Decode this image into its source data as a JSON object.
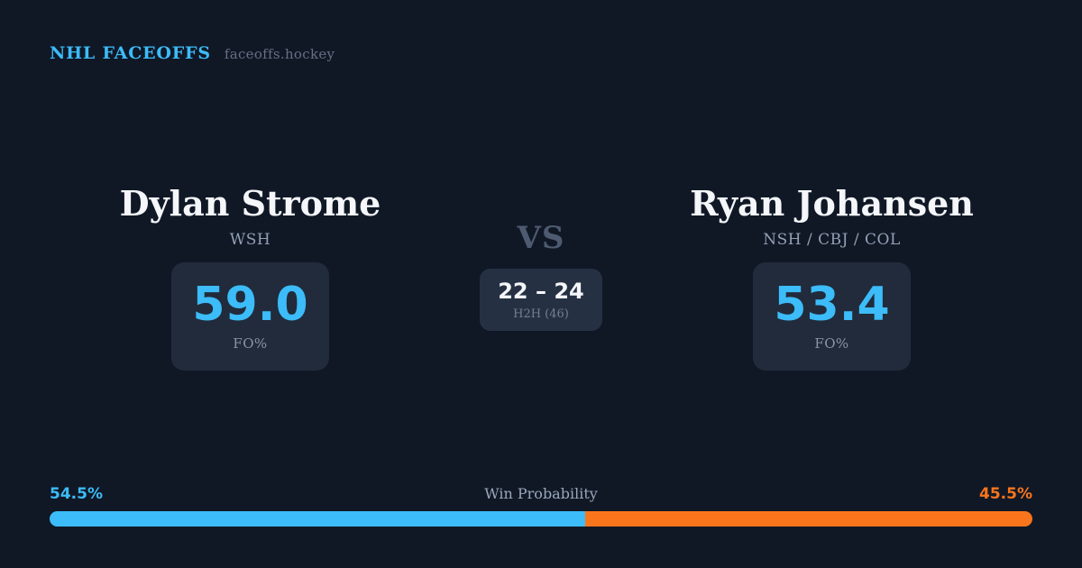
{
  "header": {
    "brand": "NHL FACEOFFS",
    "site": "faceoffs.hockey"
  },
  "players": {
    "left": {
      "name": "Dylan Strome",
      "teams": "WSH",
      "fo_pct": "59.0",
      "fo_label": "FO%"
    },
    "right": {
      "name": "Ryan Johansen",
      "teams": "NSH / CBJ / COL",
      "fo_pct": "53.4",
      "fo_label": "FO%"
    }
  },
  "versus": {
    "label": "VS",
    "h2h_score": "22 – 24",
    "h2h_label": "H2H (46)"
  },
  "win_probability": {
    "title": "Win Probability",
    "left_pct": "54.5%",
    "right_pct": "45.5%",
    "left_value": 54.5,
    "right_value": 45.5
  },
  "colors": {
    "background": "#101826",
    "card": "#212b3b",
    "h2h_card": "#253143",
    "accent_blue": "#3cbcf8",
    "accent_orange": "#f8751c",
    "text_primary": "#f4f6f9",
    "text_muted": "#93a0b4",
    "vs_color": "#4d5a70"
  }
}
